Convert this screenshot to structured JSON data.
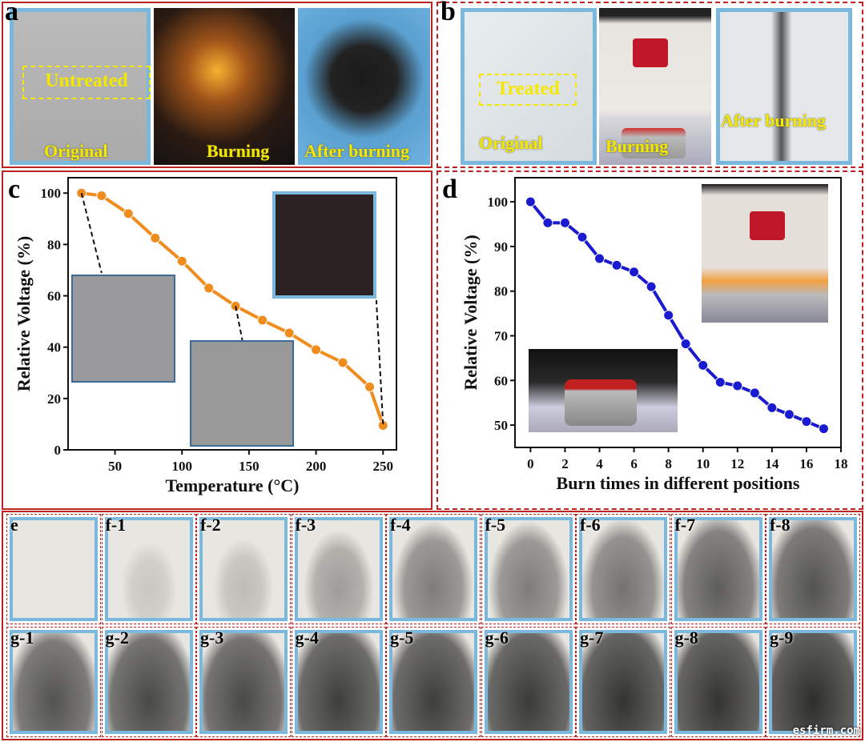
{
  "panel_a": {
    "letter": "a",
    "box_label": "Untreated",
    "original": "Original",
    "burning": "Burning",
    "after": "After burning"
  },
  "panel_b": {
    "letter": "b",
    "box_label": "Treated",
    "original": "Original",
    "burning": "Burning",
    "after": "After burning"
  },
  "panel_c": {
    "letter": "c"
  },
  "panel_d": {
    "letter": "d"
  },
  "panel_e": {
    "row_f": [
      "e",
      "f-1",
      "f-2",
      "f-3",
      "f-4",
      "f-5",
      "f-6",
      "f-7",
      "f-8"
    ],
    "row_g": [
      "g-1",
      "g-2",
      "g-3",
      "g-4",
      "g-5",
      "g-6",
      "g-7",
      "g-8",
      "g-9"
    ],
    "char_levels_f": [
      0,
      0.15,
      0.2,
      0.35,
      0.5,
      0.5,
      0.55,
      0.65,
      0.7
    ],
    "char_levels_g": [
      0.7,
      0.75,
      0.75,
      0.8,
      0.8,
      0.82,
      0.85,
      0.85,
      0.88
    ]
  },
  "watermark": "esfirm.com",
  "chart_data": [
    {
      "type": "line",
      "title": "",
      "xlabel": "Temperature (°C)",
      "ylabel": "Relative Voltage (%)",
      "x": [
        25,
        40,
        60,
        80,
        100,
        120,
        140,
        160,
        180,
        200,
        220,
        240,
        250
      ],
      "values": [
        100,
        99,
        92,
        82.5,
        73.5,
        63,
        56,
        50.5,
        45.5,
        39,
        34,
        24.5,
        9.5
      ],
      "xlim": [
        15,
        260
      ],
      "ylim": [
        0,
        106
      ],
      "xticks": [
        50,
        100,
        150,
        200,
        250
      ],
      "yticks": [
        0,
        20,
        40,
        60,
        80,
        100
      ],
      "color": "#f08c1e",
      "grid": false
    },
    {
      "type": "line",
      "title": "",
      "xlabel": "Burn times in different positions",
      "ylabel": "Relative Voltage (%)",
      "x": [
        0,
        1,
        2,
        3,
        4,
        5,
        6,
        7,
        8,
        9,
        10,
        11,
        12,
        13,
        14,
        15,
        16,
        17
      ],
      "values": [
        100,
        95.3,
        95.3,
        92.1,
        87.3,
        85.8,
        84.3,
        81,
        74.6,
        68.2,
        63.4,
        59.6,
        58.8,
        57.2,
        53.9,
        52.4,
        50.8,
        49.2
      ],
      "xlim": [
        -0.9,
        18
      ],
      "ylim": [
        45,
        105.4
      ],
      "xticks": [
        0,
        2,
        4,
        6,
        8,
        10,
        12,
        14,
        16,
        18
      ],
      "yticks": [
        50,
        60,
        70,
        80,
        90,
        100
      ],
      "color": "#1a1ad0",
      "grid": false
    }
  ]
}
